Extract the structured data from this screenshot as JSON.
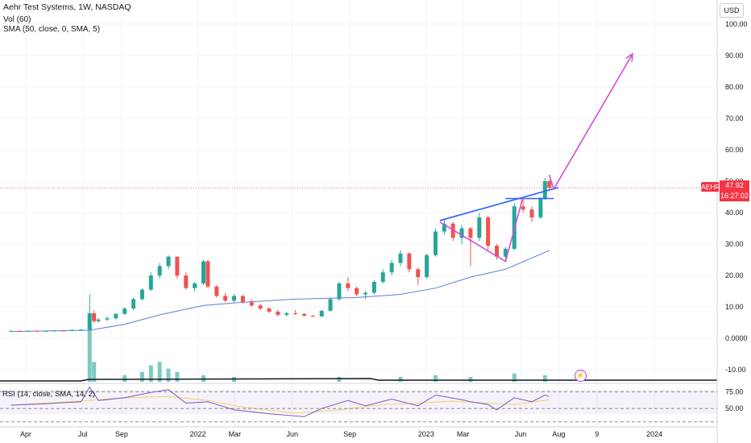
{
  "legend": {
    "title": "Aehr Test Systems, 1W, NASDAQ",
    "vol": "Vol (60)",
    "sma": "SMA (50, close, 0, SMA, 5)",
    "rsi": "RSI (14, close, SMA, 14, 2)"
  },
  "currency": "USD",
  "ticker": "AEHR",
  "last_price": "47.92",
  "countdown": "16:27:02",
  "icon_name": "lightning-icon",
  "colors": {
    "up": "#26a69a",
    "down": "#ef5350",
    "sma": "#5b7fd6",
    "drawing_blue": "#2962ff",
    "arrow": "#d04fd8",
    "rsi": "#7e57c2",
    "rsi_ma": "#f2d36b",
    "price_tag": "#f23645"
  },
  "chart_data": {
    "type": "candlestick",
    "title": "Aehr Test Systems, 1W, NASDAQ",
    "y_ticks": [
      "100.00",
      "90.00",
      "80.00",
      "70.00",
      "60.00",
      "50.00",
      "40.00",
      "30.00",
      "20.00",
      "10.00",
      "0.0000",
      "-10.00"
    ],
    "y_tick_values": [
      100,
      90,
      80,
      70,
      60,
      50,
      40,
      30,
      20,
      10,
      0,
      -10
    ],
    "x_ticks": [
      "Apr",
      "Jul",
      "Sep",
      "2022",
      "Mar",
      "Jun",
      "Sep",
      "2023",
      "Mar",
      "Jun",
      "Aug",
      "9",
      "2024"
    ],
    "rsi_ticks": [
      "75.00",
      "50.00"
    ],
    "rsi_tick_values": [
      75,
      50
    ],
    "x_range": [
      "2021-03-01",
      "2024-03-31"
    ],
    "ylim": [
      -12,
      102
    ],
    "rsi_ylim": [
      25,
      85
    ],
    "price_series": [
      [
        "2021-03-08",
        2.3,
        2.5,
        2.1,
        2.4
      ],
      [
        "2021-03-22",
        2.4,
        2.6,
        2.2,
        2.3
      ],
      [
        "2021-04-05",
        2.3,
        2.5,
        2.1,
        2.4
      ],
      [
        "2021-04-19",
        2.4,
        2.6,
        2.2,
        2.3
      ],
      [
        "2021-05-03",
        2.3,
        2.5,
        2.1,
        2.4
      ],
      [
        "2021-05-17",
        2.4,
        2.7,
        2.2,
        2.5
      ],
      [
        "2021-05-31",
        2.5,
        2.7,
        2.3,
        2.4
      ],
      [
        "2021-06-14",
        2.4,
        2.9,
        2.3,
        2.7
      ],
      [
        "2021-06-28",
        2.7,
        3.0,
        2.5,
        2.8
      ],
      [
        "2021-07-12",
        2.8,
        14.0,
        2.7,
        8.0
      ],
      [
        "2021-07-19",
        8.0,
        9.0,
        5.0,
        5.5
      ],
      [
        "2021-07-26",
        5.5,
        6.5,
        5.0,
        6.0
      ],
      [
        "2021-08-09",
        6.0,
        7.0,
        5.5,
        6.4
      ],
      [
        "2021-08-23",
        6.4,
        8.0,
        6.0,
        7.8
      ],
      [
        "2021-09-06",
        7.8,
        10.0,
        7.5,
        9.5
      ],
      [
        "2021-09-20",
        9.5,
        13.0,
        9.0,
        12.5
      ],
      [
        "2021-10-04",
        12.5,
        16.0,
        12.0,
        15.5
      ],
      [
        "2021-10-18",
        15.5,
        21.0,
        15.0,
        20.0
      ],
      [
        "2021-11-01",
        20.0,
        24.0,
        19.0,
        23.0
      ],
      [
        "2021-11-15",
        23.0,
        26.5,
        22.0,
        26.0
      ],
      [
        "2021-11-29",
        26.0,
        26.0,
        19.0,
        20.0
      ],
      [
        "2021-12-13",
        20.0,
        21.0,
        15.5,
        16.0
      ],
      [
        "2021-12-27",
        16.0,
        18.0,
        15.0,
        17.5
      ],
      [
        "2022-01-10",
        17.5,
        25.0,
        17.0,
        24.5
      ],
      [
        "2022-01-17",
        24.5,
        25.0,
        16.0,
        16.5
      ],
      [
        "2022-01-31",
        16.5,
        17.0,
        13.0,
        13.5
      ],
      [
        "2022-02-14",
        13.5,
        14.5,
        11.5,
        12.0
      ],
      [
        "2022-02-28",
        12.0,
        14.0,
        11.5,
        13.5
      ],
      [
        "2022-03-14",
        13.5,
        14.0,
        11.0,
        11.5
      ],
      [
        "2022-03-28",
        11.5,
        12.5,
        10.0,
        10.5
      ],
      [
        "2022-04-11",
        10.5,
        11.0,
        9.0,
        9.5
      ],
      [
        "2022-04-25",
        9.5,
        10.0,
        8.0,
        8.5
      ],
      [
        "2022-05-09",
        8.5,
        9.0,
        7.0,
        7.5
      ],
      [
        "2022-05-23",
        7.5,
        8.5,
        7.0,
        8.0
      ],
      [
        "2022-06-06",
        8.0,
        9.0,
        7.5,
        7.8
      ],
      [
        "2022-06-20",
        7.8,
        8.0,
        7.0,
        7.2
      ],
      [
        "2022-07-04",
        7.2,
        7.5,
        6.8,
        7.0
      ],
      [
        "2022-07-18",
        7.0,
        9.0,
        6.8,
        8.8
      ],
      [
        "2022-08-01",
        8.8,
        13.0,
        8.5,
        12.5
      ],
      [
        "2022-08-15",
        12.5,
        18.0,
        12.0,
        17.5
      ],
      [
        "2022-08-29",
        17.5,
        19.5,
        15.0,
        16.0
      ],
      [
        "2022-09-12",
        16.0,
        16.5,
        13.5,
        14.0
      ],
      [
        "2022-09-26",
        14.0,
        15.0,
        12.5,
        14.5
      ],
      [
        "2022-10-10",
        14.5,
        18.5,
        14.0,
        18.0
      ],
      [
        "2022-10-24",
        18.0,
        22.0,
        17.5,
        21.0
      ],
      [
        "2022-11-07",
        21.0,
        25.0,
        20.0,
        24.0
      ],
      [
        "2022-11-21",
        24.0,
        28.0,
        23.0,
        27.0
      ],
      [
        "2022-12-05",
        27.0,
        27.5,
        21.0,
        22.0
      ],
      [
        "2022-12-19",
        22.0,
        22.5,
        17.0,
        19.5
      ],
      [
        "2023-01-02",
        19.5,
        27.0,
        19.0,
        26.5
      ],
      [
        "2023-01-16",
        26.5,
        35.0,
        26.0,
        34.0
      ],
      [
        "2023-01-30",
        34.0,
        38.0,
        33.0,
        36.5
      ],
      [
        "2023-02-13",
        36.5,
        37.0,
        31.0,
        32.0
      ],
      [
        "2023-02-27",
        32.0,
        36.0,
        30.0,
        35.0
      ],
      [
        "2023-03-13",
        35.0,
        35.5,
        23.0,
        32.0
      ],
      [
        "2023-03-27",
        32.0,
        40.0,
        31.0,
        38.5
      ],
      [
        "2023-04-10",
        38.5,
        39.0,
        28.0,
        29.5
      ],
      [
        "2023-04-24",
        29.5,
        30.0,
        25.0,
        26.0
      ],
      [
        "2023-05-08",
        26.0,
        29.0,
        25.0,
        28.5
      ],
      [
        "2023-05-22",
        28.5,
        43.0,
        28.0,
        42.0
      ],
      [
        "2023-06-05",
        42.0,
        45.0,
        40.0,
        41.0
      ],
      [
        "2023-06-19",
        41.0,
        42.0,
        37.0,
        38.5
      ],
      [
        "2023-07-03",
        38.5,
        45.0,
        38.0,
        44.5
      ],
      [
        "2023-07-10",
        44.5,
        51.0,
        44.0,
        50.0
      ],
      [
        "2023-07-17",
        50.0,
        50.5,
        47.0,
        47.92
      ]
    ],
    "volume_series": [
      [
        "2021-07-12",
        17.0
      ],
      [
        "2021-07-19",
        6.0
      ],
      [
        "2021-09-06",
        2.0
      ],
      [
        "2021-10-04",
        3.0
      ],
      [
        "2021-10-18",
        5.0
      ],
      [
        "2021-11-01",
        6.0
      ],
      [
        "2021-11-15",
        4.0
      ],
      [
        "2021-11-29",
        3.0
      ],
      [
        "2022-01-10",
        2.0
      ],
      [
        "2022-02-28",
        1.5
      ],
      [
        "2022-08-15",
        1.5
      ],
      [
        "2022-11-21",
        1.5
      ],
      [
        "2023-01-16",
        2.0
      ],
      [
        "2023-03-13",
        1.5
      ],
      [
        "2023-05-22",
        2.5
      ],
      [
        "2023-07-10",
        2.0
      ]
    ],
    "sma_series": [
      [
        "2021-03-08",
        2.2
      ],
      [
        "2021-07-12",
        2.6
      ],
      [
        "2021-09-06",
        4.5
      ],
      [
        "2021-11-01",
        7.5
      ],
      [
        "2022-01-10",
        10.5
      ],
      [
        "2022-03-14",
        11.5
      ],
      [
        "2022-06-06",
        12.5
      ],
      [
        "2022-09-12",
        13.0
      ],
      [
        "2022-11-21",
        14.0
      ],
      [
        "2023-01-16",
        16.0
      ],
      [
        "2023-03-13",
        19.5
      ],
      [
        "2023-05-08",
        22.0
      ],
      [
        "2023-07-17",
        28.0
      ]
    ],
    "rsi_series": [
      [
        "2021-03-08",
        55
      ],
      [
        "2021-05-03",
        57
      ],
      [
        "2021-06-28",
        60
      ],
      [
        "2021-07-12",
        82
      ],
      [
        "2021-07-26",
        62
      ],
      [
        "2021-09-06",
        66
      ],
      [
        "2021-10-18",
        74
      ],
      [
        "2021-11-15",
        78
      ],
      [
        "2021-12-13",
        58
      ],
      [
        "2022-01-17",
        60
      ],
      [
        "2022-02-28",
        48
      ],
      [
        "2022-04-25",
        42
      ],
      [
        "2022-06-20",
        38
      ],
      [
        "2022-07-18",
        50
      ],
      [
        "2022-08-29",
        62
      ],
      [
        "2022-09-26",
        54
      ],
      [
        "2022-11-07",
        64
      ],
      [
        "2022-12-19",
        54
      ],
      [
        "2023-01-16",
        70
      ],
      [
        "2023-02-27",
        63
      ],
      [
        "2023-03-13",
        60
      ],
      [
        "2023-04-10",
        56
      ],
      [
        "2023-04-24",
        48
      ],
      [
        "2023-05-22",
        66
      ],
      [
        "2023-06-19",
        60
      ],
      [
        "2023-07-10",
        70
      ],
      [
        "2023-07-17",
        68
      ]
    ],
    "rsi_ma_series": [
      [
        "2021-03-08",
        55
      ],
      [
        "2021-07-12",
        62
      ],
      [
        "2021-09-06",
        66
      ],
      [
        "2021-11-15",
        68
      ],
      [
        "2022-01-17",
        62
      ],
      [
        "2022-03-14",
        52
      ],
      [
        "2022-06-06",
        43
      ],
      [
        "2022-08-15",
        48
      ],
      [
        "2022-10-24",
        56
      ],
      [
        "2022-12-19",
        58
      ],
      [
        "2023-02-13",
        61
      ],
      [
        "2023-04-10",
        58
      ],
      [
        "2023-05-22",
        56
      ],
      [
        "2023-07-17",
        63
      ]
    ],
    "last_price_line": 47.92,
    "drawings": [
      {
        "type": "trendline",
        "color": "#2962ff",
        "points": [
          [
            "2023-01-23",
            37.5
          ],
          [
            "2023-07-31",
            48.0
          ]
        ]
      },
      {
        "type": "horizontal",
        "color": "#2962ff",
        "points": [
          [
            "2023-05-08",
            44.5
          ],
          [
            "2023-07-24",
            44.5
          ]
        ]
      },
      {
        "type": "path",
        "color": "#d04fd8",
        "points": [
          [
            "2023-01-23",
            37.0
          ],
          [
            "2023-05-08",
            24.5
          ],
          [
            "2023-06-05",
            45.0
          ]
        ]
      },
      {
        "type": "path",
        "color": "#d04fd8",
        "points": [
          [
            "2023-07-17",
            52.0
          ],
          [
            "2023-07-24",
            47.5
          ],
          [
            "2023-11-27",
            90.5
          ]
        ]
      }
    ]
  }
}
